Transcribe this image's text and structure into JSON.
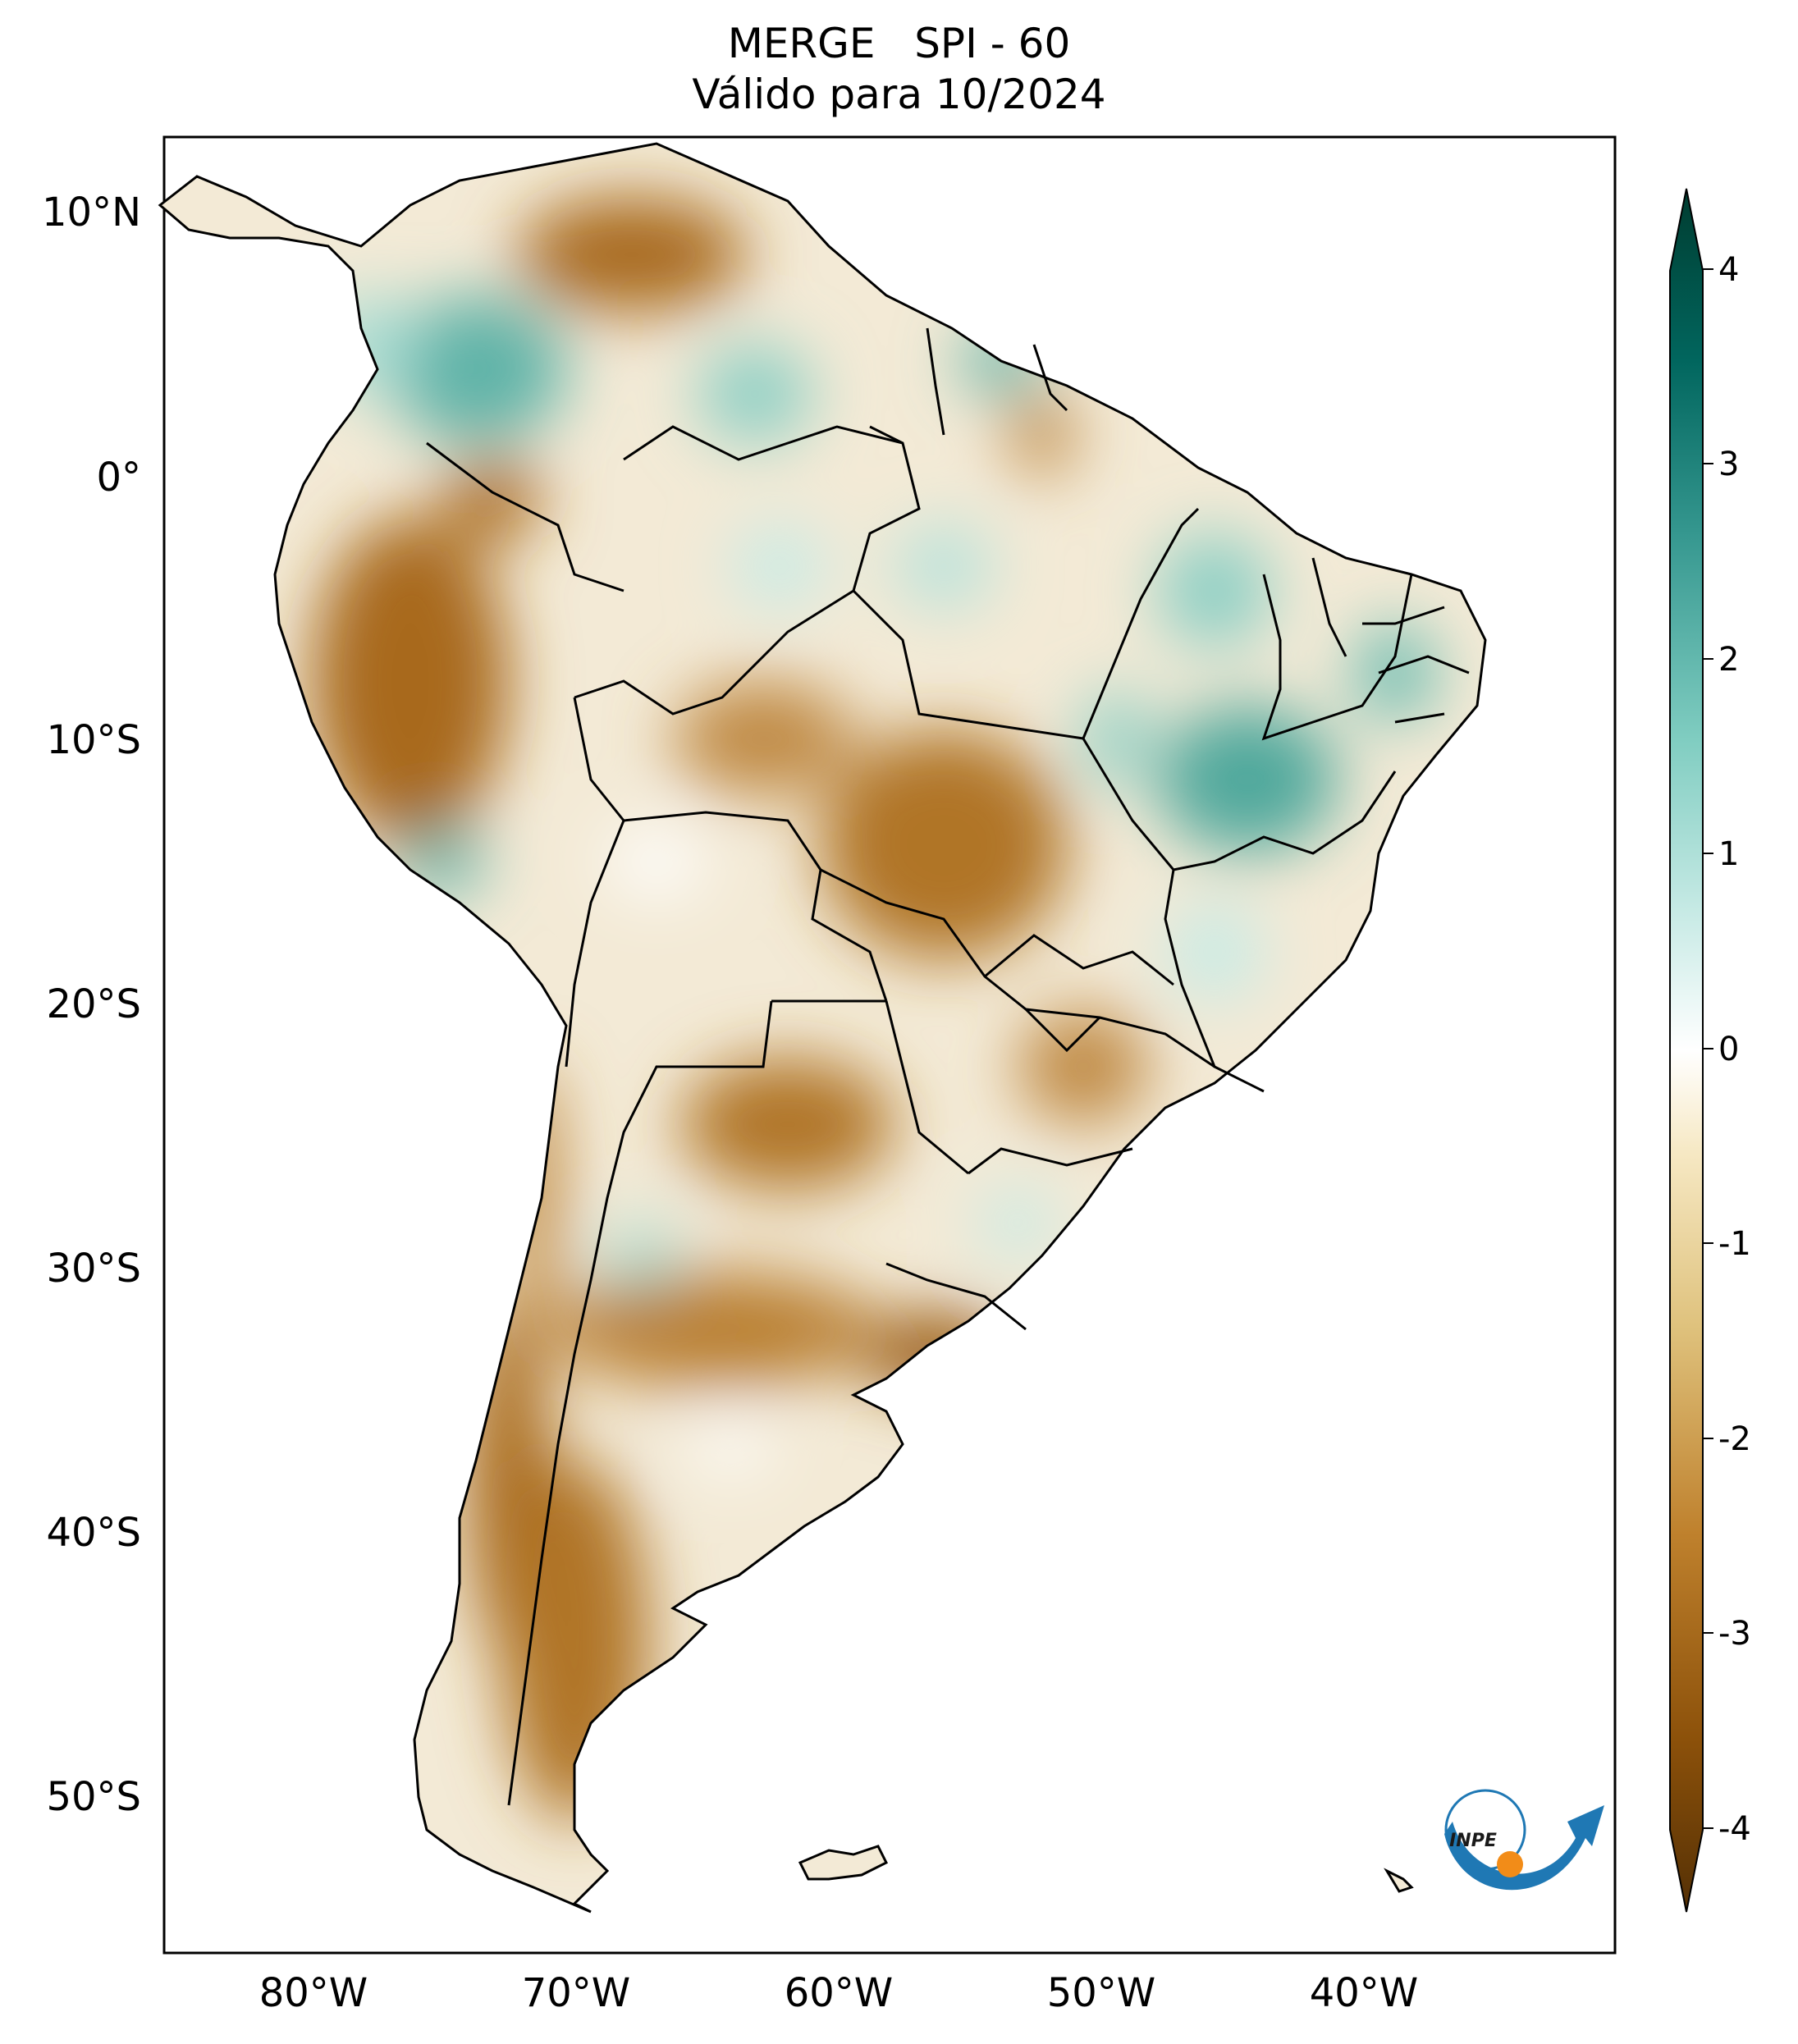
{
  "title": {
    "line1": "MERGE   SPI - 60",
    "line2": "Válido para 10/2024"
  },
  "axes": {
    "lat_labels": [
      "10°N",
      "0°",
      "10°S",
      "20°S",
      "30°S",
      "40°S",
      "50°S"
    ],
    "lon_labels": [
      "80°W",
      "70°W",
      "60°W",
      "50°W",
      "40°W"
    ]
  },
  "colorbar": {
    "ticks": [
      "4",
      "3",
      "2",
      "1",
      "0",
      "-1",
      "-2",
      "-3",
      "-4"
    ],
    "min": -4,
    "max": 4,
    "colors_low_to_high": [
      "#543005",
      "#8c510a",
      "#bf812d",
      "#dfc27d",
      "#f6e8c3",
      "#ffffff",
      "#c7eae5",
      "#80cdc1",
      "#35978f",
      "#01665e",
      "#003c30"
    ]
  },
  "logo": {
    "text": "INPE"
  },
  "palette": {
    "dry": "#a8691e",
    "wet": "#5fb3a8",
    "neutral": "#f6f0e2",
    "border": "#000000"
  }
}
